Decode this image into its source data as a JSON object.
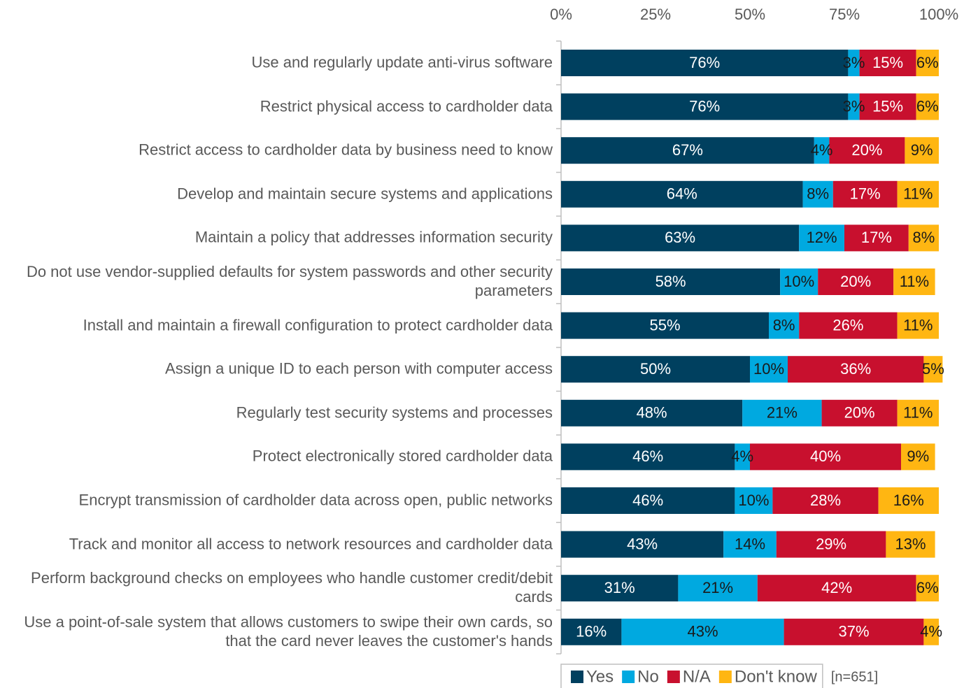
{
  "chart_data": {
    "type": "stacked-bar-horizontal",
    "categories": [
      "Use and regularly update anti-virus software",
      "Restrict physical access to cardholder data",
      "Restrict access to cardholder data by business need to know",
      "Develop and maintain secure systems and applications",
      "Maintain a policy that addresses information security",
      "Do not use vendor-supplied defaults for system passwords and other security parameters",
      "Install and maintain a firewall configuration to protect cardholder data",
      "Assign a unique ID to each person with computer access",
      "Regularly test security systems and processes",
      "Protect electronically stored cardholder data",
      "Encrypt transmission of cardholder data across open, public networks",
      "Track and monitor all access to network resources and cardholder data",
      "Perform background checks on employees who handle customer credit/debit cards",
      "Use a point-of-sale system that allows customers to swipe their own cards, so that the card never leaves the customer's hands"
    ],
    "series": [
      {
        "name": "Yes",
        "color": "#00405f",
        "values": [
          76,
          76,
          67,
          64,
          63,
          58,
          55,
          50,
          48,
          46,
          46,
          43,
          31,
          16
        ],
        "value_labels": [
          "76%",
          "76%",
          "67%",
          "64%",
          "63%",
          "58%",
          "55%",
          "50%",
          "48%",
          "46%",
          "46%",
          "43%",
          "31%",
          "16%"
        ]
      },
      {
        "name": "No",
        "color": "#00a9e0",
        "values": [
          3,
          3,
          4,
          8,
          12,
          10,
          8,
          10,
          21,
          4,
          10,
          14,
          21,
          43
        ],
        "value_labels": [
          "3%",
          "3%",
          "4%",
          "8%",
          "12%",
          "10%",
          "8%",
          "10%",
          "21%",
          "4%",
          "10%",
          "14%",
          "21%",
          "43%"
        ]
      },
      {
        "name": "N/A",
        "color": "#c8102e",
        "values": [
          15,
          15,
          20,
          17,
          17,
          20,
          26,
          36,
          20,
          40,
          28,
          29,
          42,
          37
        ],
        "value_labels": [
          "15%",
          "15%",
          "20%",
          "17%",
          "17%",
          "20%",
          "26%",
          "36%",
          "20%",
          "40%",
          "28%",
          "29%",
          "42%",
          "37%"
        ]
      },
      {
        "name": "Don't know",
        "color": "#ffb612",
        "values": [
          6,
          6,
          9,
          11,
          8,
          11,
          11,
          5,
          11,
          9,
          16,
          13,
          6,
          4
        ],
        "value_labels": [
          "6%",
          "6%",
          "9%",
          "11%",
          "8%",
          "11%",
          "11%",
          "5%",
          "11%",
          "9%",
          "16%",
          "13%",
          "6%",
          "4%"
        ]
      }
    ],
    "xlim": [
      0,
      100
    ],
    "xticks": [
      {
        "value": 0,
        "label": "0%"
      },
      {
        "value": 25,
        "label": "25%"
      },
      {
        "value": 50,
        "label": "50%"
      },
      {
        "value": 75,
        "label": "75%"
      },
      {
        "value": 100,
        "label": "100%"
      }
    ],
    "grid": false,
    "legend": "bottom",
    "note": "[n=651]"
  }
}
